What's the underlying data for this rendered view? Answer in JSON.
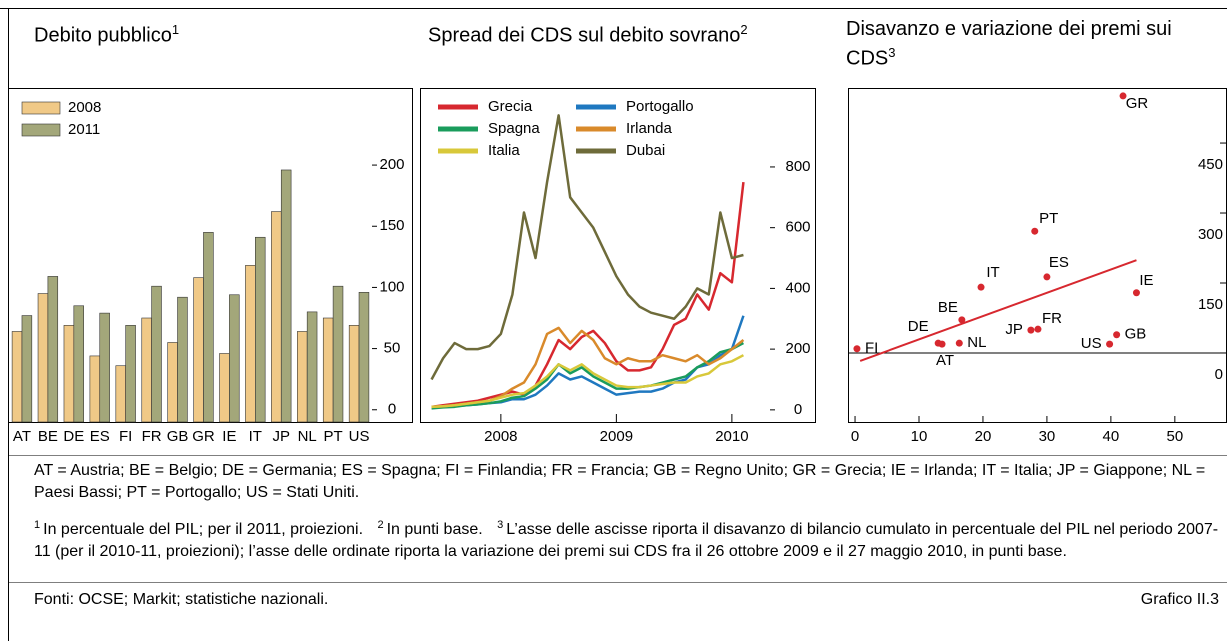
{
  "chart_data": [
    {
      "type": "bar",
      "title": "Debito pubblico",
      "title_note": "1",
      "categories": [
        "AT",
        "BE",
        "DE",
        "ES",
        "FI",
        "FR",
        "GB",
        "GR",
        "IE",
        "IT",
        "JP",
        "NL",
        "PT",
        "US"
      ],
      "series": [
        {
          "name": "2008",
          "color": "#f0c987",
          "values": [
            64,
            95,
            69,
            44,
            36,
            75,
            55,
            108,
            46,
            118,
            162,
            64,
            75,
            69
          ]
        },
        {
          "name": "2011",
          "color": "#a3a77a",
          "values": [
            77,
            109,
            85,
            79,
            69,
            101,
            92,
            145,
            94,
            141,
            196,
            80,
            101,
            96
          ]
        }
      ],
      "ylim": [
        -10,
        263
      ],
      "yticks": [
        0,
        50,
        100,
        150,
        200
      ],
      "legend": "upper left"
    },
    {
      "type": "line",
      "title": "Spread dei CDS sul debito sovrano",
      "title_note": "2",
      "x": [
        2007.4,
        2007.5,
        2007.6,
        2007.7,
        2007.8,
        2007.9,
        2008.0,
        2008.1,
        2008.2,
        2008.3,
        2008.4,
        2008.5,
        2008.6,
        2008.7,
        2008.8,
        2008.9,
        2009.0,
        2009.1,
        2009.2,
        2009.3,
        2009.4,
        2009.5,
        2009.6,
        2009.7,
        2009.8,
        2009.9,
        2010.0,
        2010.1
      ],
      "series": [
        {
          "name": "Grecia",
          "color": "#d7282f",
          "values": [
            10,
            15,
            20,
            25,
            30,
            40,
            50,
            60,
            50,
            80,
            150,
            230,
            200,
            240,
            260,
            220,
            160,
            130,
            130,
            140,
            200,
            280,
            300,
            380,
            330,
            450,
            420,
            750
          ]
        },
        {
          "name": "Portogallo",
          "color": "#1f78c0",
          "values": [
            8,
            10,
            12,
            15,
            18,
            22,
            25,
            35,
            35,
            50,
            80,
            120,
            100,
            110,
            90,
            70,
            50,
            55,
            60,
            60,
            70,
            90,
            100,
            140,
            150,
            180,
            200,
            310
          ]
        },
        {
          "name": "Spagna",
          "color": "#1a9c5c",
          "values": [
            5,
            8,
            10,
            15,
            18,
            22,
            28,
            40,
            45,
            70,
            100,
            150,
            120,
            140,
            110,
            90,
            70,
            70,
            75,
            80,
            90,
            100,
            110,
            140,
            160,
            190,
            200,
            220
          ]
        },
        {
          "name": "Irlanda",
          "color": "#d98a2b",
          "values": [
            10,
            12,
            15,
            20,
            25,
            30,
            45,
            70,
            90,
            150,
            250,
            270,
            220,
            260,
            230,
            170,
            150,
            170,
            160,
            160,
            180,
            170,
            160,
            180,
            150,
            170,
            200,
            230
          ]
        },
        {
          "name": "Italia",
          "color": "#d8c83a",
          "values": [
            10,
            12,
            15,
            20,
            25,
            30,
            40,
            50,
            55,
            80,
            110,
            150,
            130,
            150,
            120,
            100,
            80,
            75,
            75,
            80,
            85,
            90,
            90,
            110,
            120,
            150,
            160,
            180
          ]
        },
        {
          "name": "Dubai",
          "color": "#6e6b3a",
          "values": [
            100,
            170,
            220,
            200,
            200,
            210,
            250,
            380,
            650,
            500,
            750,
            970,
            700,
            650,
            600,
            520,
            440,
            380,
            340,
            320,
            310,
            300,
            340,
            400,
            380,
            650,
            500,
            510
          ]
        }
      ],
      "xlim": [
        2007.3,
        2010.33
      ],
      "xticks": [
        2008,
        2009,
        2010
      ],
      "ylim": [
        -40,
        1060
      ],
      "yticks": [
        0,
        200,
        400,
        600,
        800
      ],
      "legend": "upper left"
    },
    {
      "type": "scatter",
      "title": "Disavanzo e variazione dei premi sui CDS",
      "title_note": "3",
      "color": "#d7282f",
      "labels": [
        "FI",
        "DE",
        "AT",
        "NL",
        "BE",
        "IT",
        "JP",
        "FR",
        "PT",
        "ES",
        "US",
        "GB",
        "IE",
        "GR"
      ],
      "x": [
        0.3,
        13,
        13.6,
        16.3,
        16.7,
        19.7,
        27.5,
        28.6,
        28.1,
        30,
        39.8,
        40.9,
        44,
        41.9
      ],
      "values": [
        9,
        21,
        19,
        21,
        71,
        141,
        49,
        51,
        261,
        163,
        19,
        39,
        129,
        551
      ],
      "fit": {
        "x": [
          0.8,
          44
        ],
        "y": [
          -17,
          199
        ]
      },
      "reference_line": 0,
      "xlim": [
        -1.1,
        58
      ],
      "xticks": [
        0,
        10,
        20,
        30,
        40,
        50
      ],
      "ylim": [
        -148,
        568
      ],
      "yticks": [
        0,
        150,
        300,
        450
      ]
    }
  ],
  "abbreviations": "AT = Austria; BE = Belgio; DE = Germania; ES = Spagna; FI = Finlandia; FR = Francia; GB = Regno Unito; GR = Grecia; IE = Irlanda; IT = Italia; JP = Giappone; NL = Paesi Bassi; PT = Portogallo; US = Stati Uniti.",
  "notes": [
    {
      "mark": "1",
      "text": "In percentuale del PIL; per il 2011, proiezioni."
    },
    {
      "mark": "2",
      "text": "In punti base."
    },
    {
      "mark": "3",
      "text": "L’asse delle ascisse riporta il disavanzo di bilancio cumulato in percentuale del PIL nel periodo 2007-11 (per il 2010-11, proiezioni); l’asse delle ordinate riporta la variazione dei premi sui CDS fra il 26 ottobre 2009 e il 27 maggio 2010, in punti base."
    }
  ],
  "source": "Fonti: OCSE; Markit; statistiche nazionali.",
  "figure_label": "Grafico II.3"
}
